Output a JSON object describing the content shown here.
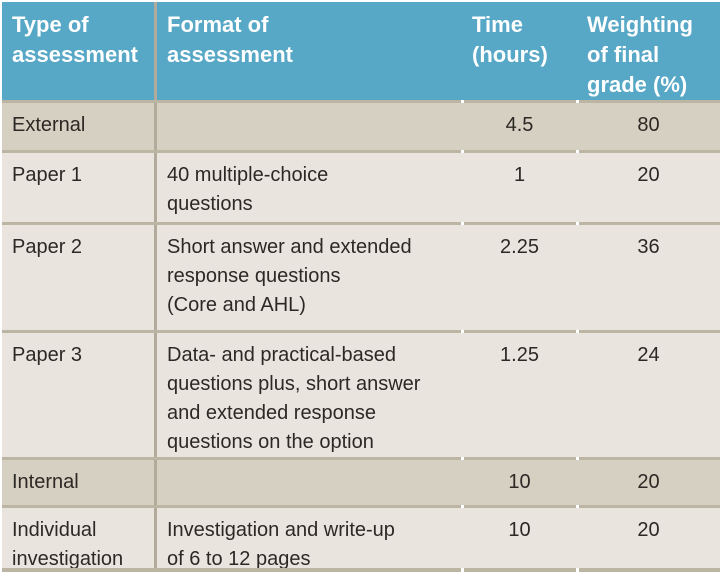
{
  "table": {
    "title": "Assessment outline table",
    "columns": [
      {
        "label": "Type of\nassessment"
      },
      {
        "label": "Format of\nassessment"
      },
      {
        "label": "Time\n(hours)"
      },
      {
        "label": "Weighting\nof final\ngrade (%)"
      }
    ],
    "rows": [
      {
        "type": "External",
        "format": "",
        "time": "4.5",
        "weighting": "80",
        "variant": "section"
      },
      {
        "type": "Paper 1",
        "format": "40 multiple-choice\nquestions",
        "time": "1",
        "weighting": "20",
        "variant": "detail"
      },
      {
        "type": "Paper 2",
        "format": "Short answer and extended\nresponse questions\n(Core and AHL)",
        "time": "2.25",
        "weighting": "36",
        "variant": "detail"
      },
      {
        "type": "Paper 3",
        "format": "Data- and practical-based\nquestions plus, short answer\nand extended response\nquestions on the option",
        "time": "1.25",
        "weighting": "24",
        "variant": "detail"
      },
      {
        "type": "Internal",
        "format": "",
        "time": "10",
        "weighting": "20",
        "variant": "section"
      },
      {
        "type": "Individual\ninvestigation",
        "format": "Investigation and write-up\nof 6 to 12 pages",
        "time": "10",
        "weighting": "20",
        "variant": "detail"
      }
    ],
    "colors": {
      "header_bg": "#57a7c6",
      "header_text": "#ffffff",
      "section_row_bg": "#d6d0c3",
      "detail_row_bg": "#e9e5de",
      "rule": "#bdb5a4",
      "column_divider": "#b2aa9a",
      "body_text": "#2c2824"
    }
  }
}
